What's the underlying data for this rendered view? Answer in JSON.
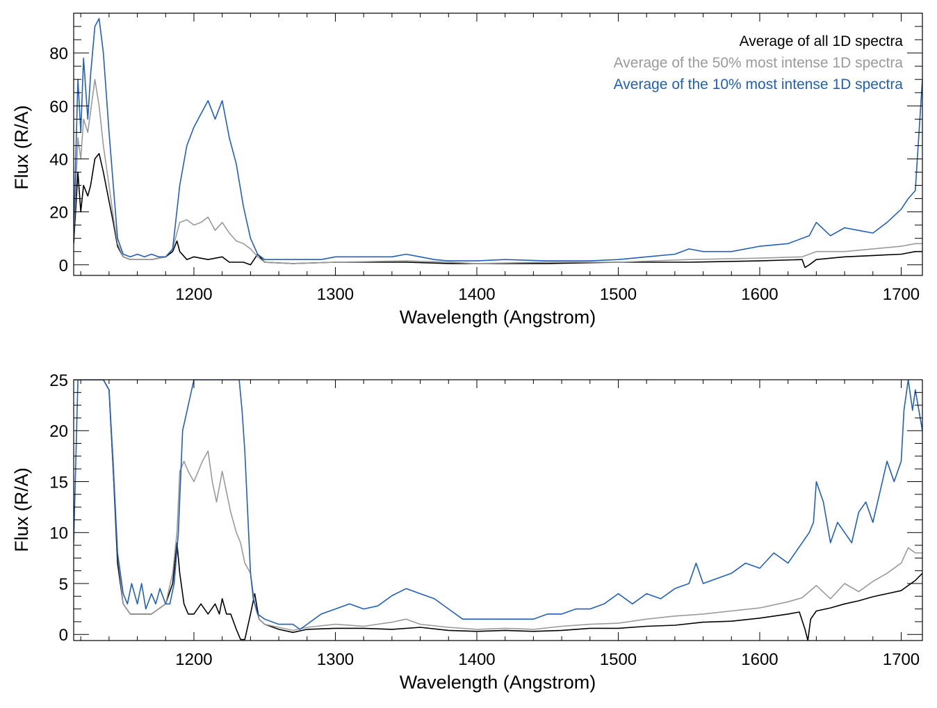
{
  "chart_data": [
    {
      "type": "line",
      "xlabel": "Wavelength (Angstrom)",
      "ylabel": "Flux (R/A)",
      "xlim": [
        1115,
        1715
      ],
      "ylim": [
        -4,
        95
      ],
      "xticks": [
        1200,
        1300,
        1400,
        1500,
        1600,
        1700
      ],
      "yticks": [
        0,
        20,
        40,
        60,
        80
      ],
      "grid": false,
      "legend_position": "top-right",
      "series": [
        {
          "name": "Average of all 1D spectra",
          "color": "#000000",
          "x": [
            1115,
            1118,
            1120,
            1122,
            1125,
            1127,
            1130,
            1133,
            1136,
            1140,
            1143,
            1146,
            1150,
            1155,
            1160,
            1170,
            1180,
            1185,
            1188,
            1190,
            1195,
            1200,
            1210,
            1220,
            1225,
            1230,
            1235,
            1240,
            1245,
            1250,
            1270,
            1300,
            1350,
            1380,
            1400,
            1450,
            1500,
            1550,
            1600,
            1630,
            1632,
            1635,
            1640,
            1660,
            1680,
            1700,
            1710,
            1715
          ],
          "y": [
            8,
            35,
            20,
            30,
            26,
            30,
            40,
            42,
            35,
            24,
            16,
            7,
            3,
            2,
            2,
            2,
            3,
            5,
            9,
            5,
            2,
            3,
            2,
            3,
            1,
            1,
            1,
            0,
            4,
            1,
            0.5,
            1,
            1,
            0.5,
            0.5,
            0.5,
            1,
            1,
            1.5,
            2,
            -1,
            0,
            2,
            3,
            3.5,
            4,
            5,
            5
          ]
        },
        {
          "name": "Average of the 50% most intense 1D spectra",
          "color": "#9a9a9a",
          "x": [
            1115,
            1118,
            1120,
            1122,
            1125,
            1127,
            1130,
            1133,
            1136,
            1140,
            1143,
            1146,
            1150,
            1155,
            1160,
            1170,
            1180,
            1185,
            1190,
            1195,
            1200,
            1205,
            1210,
            1215,
            1220,
            1225,
            1230,
            1235,
            1240,
            1245,
            1250,
            1270,
            1300,
            1350,
            1380,
            1400,
            1450,
            1500,
            1550,
            1600,
            1630,
            1640,
            1660,
            1680,
            1700,
            1710,
            1715
          ],
          "y": [
            10,
            48,
            40,
            55,
            50,
            58,
            70,
            60,
            45,
            30,
            18,
            8,
            3,
            2,
            2,
            2,
            3,
            6,
            16,
            17,
            15,
            16,
            18,
            13,
            16,
            12,
            9,
            8,
            6,
            3,
            1,
            0.5,
            1,
            1.5,
            1,
            0.5,
            1,
            1,
            2,
            2.5,
            3,
            5,
            5,
            6,
            7,
            8,
            8
          ]
        },
        {
          "name": "Average of the 10% most intense 1D spectra",
          "color": "#1f5fc0",
          "x": [
            1115,
            1118,
            1120,
            1122,
            1125,
            1127,
            1130,
            1133,
            1136,
            1140,
            1143,
            1146,
            1150,
            1155,
            1160,
            1165,
            1170,
            1175,
            1180,
            1185,
            1190,
            1195,
            1200,
            1205,
            1210,
            1215,
            1220,
            1225,
            1230,
            1235,
            1240,
            1245,
            1250,
            1260,
            1270,
            1290,
            1300,
            1320,
            1340,
            1350,
            1360,
            1370,
            1380,
            1390,
            1400,
            1420,
            1450,
            1480,
            1500,
            1520,
            1540,
            1550,
            1560,
            1580,
            1600,
            1620,
            1635,
            1640,
            1650,
            1660,
            1670,
            1680,
            1690,
            1700,
            1705,
            1710,
            1715
          ],
          "y": [
            12,
            70,
            50,
            78,
            55,
            72,
            90,
            93,
            80,
            50,
            30,
            10,
            4,
            3,
            4,
            3,
            4,
            3,
            3,
            6,
            30,
            45,
            52,
            57,
            62,
            55,
            62,
            48,
            38,
            22,
            10,
            4,
            2,
            2,
            2,
            2,
            3,
            3,
            3,
            4,
            3,
            2,
            1.5,
            1.5,
            1.5,
            2,
            1.5,
            1.5,
            2,
            3,
            4,
            6,
            5,
            5,
            7,
            8,
            11,
            16,
            11,
            14,
            13,
            12,
            16,
            21,
            25,
            28,
            70
          ]
        }
      ]
    },
    {
      "type": "line",
      "xlabel": "Wavelength (Angstrom)",
      "ylabel": "Flux (R/A)",
      "xlim": [
        1115,
        1715
      ],
      "ylim": [
        -0.6,
        25
      ],
      "xticks": [
        1200,
        1300,
        1400,
        1500,
        1600,
        1700
      ],
      "yticks": [
        0,
        5,
        10,
        15,
        20,
        25
      ],
      "grid": false,
      "legend_position": "none",
      "series": [
        {
          "color": "#000000",
          "x": [
            1115,
            1118,
            1120,
            1122,
            1125,
            1127,
            1130,
            1133,
            1136,
            1140,
            1143,
            1146,
            1150,
            1155,
            1160,
            1165,
            1170,
            1175,
            1180,
            1185,
            1188,
            1190,
            1193,
            1196,
            1200,
            1205,
            1210,
            1215,
            1218,
            1220,
            1223,
            1226,
            1230,
            1233,
            1236,
            1240,
            1243,
            1246,
            1250,
            1260,
            1270,
            1280,
            1300,
            1320,
            1340,
            1360,
            1380,
            1400,
            1420,
            1440,
            1460,
            1480,
            1500,
            1520,
            1540,
            1560,
            1580,
            1600,
            1620,
            1628,
            1632,
            1634,
            1636,
            1640,
            1650,
            1660,
            1670,
            1680,
            1690,
            1700,
            1705,
            1710,
            1715
          ],
          "y": [
            25,
            25,
            25,
            25,
            25,
            25,
            25,
            25,
            25,
            24,
            16,
            7,
            3,
            2,
            2,
            2,
            2,
            2.5,
            3,
            5,
            9,
            6,
            3,
            2,
            2,
            3,
            2,
            3,
            2,
            3.5,
            2,
            2,
            0.5,
            -0.5,
            -0.5,
            2,
            4,
            1.5,
            1,
            0.5,
            0.2,
            0.5,
            0.6,
            0.6,
            0.5,
            0.7,
            0.4,
            0.3,
            0.4,
            0.3,
            0.4,
            0.6,
            0.6,
            0.8,
            0.9,
            1.2,
            1.3,
            1.6,
            2,
            2.2,
            0.5,
            -0.6,
            1.5,
            2.3,
            2.6,
            3,
            3.3,
            3.7,
            4,
            4.3,
            4.8,
            5.3,
            6
          ]
        },
        {
          "color": "#9a9a9a",
          "x": [
            1115,
            1118,
            1120,
            1122,
            1125,
            1127,
            1130,
            1133,
            1136,
            1140,
            1143,
            1146,
            1150,
            1155,
            1160,
            1165,
            1170,
            1175,
            1180,
            1185,
            1188,
            1190,
            1193,
            1196,
            1200,
            1203,
            1206,
            1210,
            1213,
            1216,
            1220,
            1223,
            1226,
            1230,
            1233,
            1236,
            1240,
            1243,
            1246,
            1250,
            1260,
            1270,
            1280,
            1300,
            1320,
            1340,
            1350,
            1360,
            1380,
            1400,
            1420,
            1440,
            1460,
            1480,
            1500,
            1520,
            1540,
            1560,
            1580,
            1600,
            1620,
            1630,
            1640,
            1650,
            1660,
            1670,
            1680,
            1690,
            1700,
            1705,
            1710,
            1715
          ],
          "y": [
            25,
            25,
            25,
            25,
            25,
            25,
            25,
            25,
            25,
            24,
            17,
            8,
            3,
            2,
            2,
            2,
            2,
            2.5,
            3,
            6,
            10,
            16,
            17,
            16,
            15,
            16,
            17,
            18,
            15,
            13,
            16,
            14,
            12,
            10,
            9,
            7,
            6,
            3,
            1.5,
            1,
            0.7,
            0.4,
            0.7,
            1,
            0.8,
            1.2,
            1.5,
            1,
            0.7,
            0.5,
            0.6,
            0.5,
            0.8,
            1,
            1.1,
            1.5,
            1.8,
            2,
            2.3,
            2.6,
            3.2,
            3.6,
            4.8,
            3.5,
            5,
            4.2,
            5.2,
            6,
            7,
            8.5,
            8,
            8
          ]
        },
        {
          "color": "#1f5fc0",
          "x": [
            1115,
            1118,
            1120,
            1122,
            1125,
            1127,
            1130,
            1133,
            1136,
            1140,
            1143,
            1146,
            1150,
            1153,
            1156,
            1160,
            1163,
            1166,
            1170,
            1173,
            1176,
            1180,
            1183,
            1186,
            1189,
            1192,
            1200,
            1210,
            1220,
            1230,
            1232,
            1234,
            1236,
            1238,
            1240,
            1242,
            1245,
            1250,
            1260,
            1270,
            1275,
            1280,
            1290,
            1300,
            1310,
            1320,
            1330,
            1340,
            1350,
            1360,
            1370,
            1380,
            1390,
            1400,
            1410,
            1420,
            1430,
            1440,
            1450,
            1460,
            1470,
            1480,
            1490,
            1500,
            1510,
            1520,
            1530,
            1540,
            1550,
            1555,
            1560,
            1570,
            1580,
            1590,
            1600,
            1610,
            1620,
            1630,
            1635,
            1638,
            1640,
            1645,
            1650,
            1655,
            1660,
            1665,
            1670,
            1675,
            1680,
            1685,
            1690,
            1695,
            1700,
            1702,
            1705,
            1708,
            1710,
            1715
          ],
          "y": [
            9,
            25,
            25,
            25,
            25,
            25,
            25,
            25,
            25,
            24,
            16,
            8,
            4,
            3,
            5,
            3,
            5,
            2.5,
            4,
            3,
            4.5,
            3,
            3,
            5,
            10,
            20,
            25,
            25,
            25,
            25,
            25,
            22,
            18,
            12,
            6,
            3.5,
            2,
            1.5,
            1,
            1,
            0.5,
            1,
            2,
            2.5,
            3,
            2.5,
            2.8,
            3.8,
            4.5,
            4,
            3.5,
            2.5,
            1.5,
            1.5,
            1.5,
            1.5,
            1.5,
            1.5,
            2,
            2,
            2.5,
            2.5,
            3,
            4,
            3,
            4,
            3.5,
            4.5,
            5,
            7,
            5,
            5.5,
            6,
            7,
            6.5,
            8,
            7,
            9,
            10,
            11,
            15,
            13,
            9,
            11,
            10,
            9,
            12,
            13,
            11,
            14,
            17,
            15,
            17,
            22,
            25,
            22,
            24,
            20
          ]
        }
      ]
    }
  ],
  "legend": {
    "items": [
      {
        "label": "Average of all 1D spectra",
        "color": "#000000"
      },
      {
        "label": "Average of the 50% most intense 1D spectra",
        "color": "#9a9a9a"
      },
      {
        "label": "Average of the 10% most intense 1D spectra",
        "color": "#1f5fc0"
      }
    ]
  }
}
